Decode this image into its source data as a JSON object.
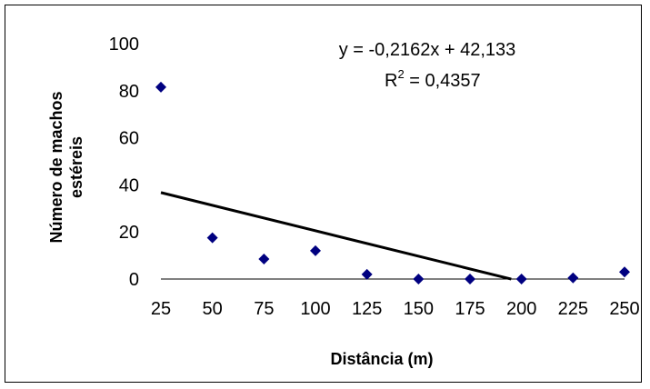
{
  "chart_data": {
    "type": "scatter",
    "title": "",
    "xlabel": "Distância  (m)",
    "ylabel_lines": [
      "Número de machos",
      "estéreis"
    ],
    "x_ticks": [
      "25",
      "50",
      "75",
      "100",
      "125",
      "150",
      "175",
      "200",
      "225",
      "250"
    ],
    "y_ticks": [
      "0",
      "20",
      "40",
      "60",
      "80",
      "100"
    ],
    "xlim": [
      25,
      250
    ],
    "ylim": [
      0,
      100
    ],
    "grid": false,
    "marker_color": "#000080",
    "line_color": "#000000",
    "points": [
      {
        "x": 25,
        "y": 81.5
      },
      {
        "x": 50,
        "y": 17.5
      },
      {
        "x": 75,
        "y": 8.5
      },
      {
        "x": 100,
        "y": 12
      },
      {
        "x": 125,
        "y": 2
      },
      {
        "x": 150,
        "y": 0
      },
      {
        "x": 175,
        "y": 0
      },
      {
        "x": 200,
        "y": 0
      },
      {
        "x": 225,
        "y": 0.5
      },
      {
        "x": 250,
        "y": 3
      }
    ],
    "trendline": {
      "type": "linear",
      "x_range": [
        25,
        195
      ],
      "equation_label": "y = -0,2162x + 42,133",
      "r2_prefix": "R",
      "r2_exponent": "2",
      "r2_value": " = 0,4357"
    }
  }
}
